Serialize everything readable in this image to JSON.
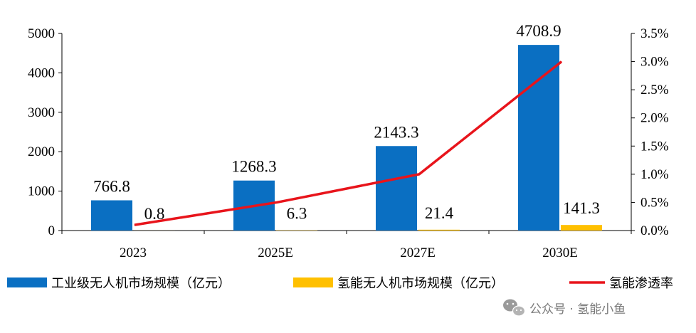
{
  "chart_data": {
    "type": "bar",
    "categories": [
      "2023",
      "2025E",
      "2027E",
      "2030E"
    ],
    "series": [
      {
        "name": "工业级无人机市场规模（亿元）",
        "type": "bar",
        "axis": "left",
        "color": "#0a6fc2",
        "values": [
          766.8,
          1268.3,
          2143.3,
          4708.9
        ],
        "labels": [
          "766.8",
          "1268.3",
          "2143.3",
          "4708.9"
        ]
      },
      {
        "name": "氢能无人机市场规模（亿元）",
        "type": "bar",
        "axis": "left",
        "color": "#ffc000",
        "values": [
          0.8,
          6.3,
          21.4,
          141.3
        ],
        "labels": [
          "0.8",
          "6.3",
          "21.4",
          "141.3"
        ]
      },
      {
        "name": "氢能渗透率",
        "type": "line",
        "axis": "right",
        "color": "#e8141b",
        "values": [
          0.1,
          0.5,
          1.0,
          3.0
        ]
      }
    ],
    "y_left": {
      "min": 0,
      "max": 5000,
      "ticks": [
        "0",
        "1000",
        "2000",
        "3000",
        "4000",
        "5000"
      ]
    },
    "y_right": {
      "min": 0,
      "max": 3.5,
      "ticks": [
        "0.0%",
        "0.5%",
        "1.0%",
        "1.5%",
        "2.0%",
        "2.5%",
        "3.0%",
        "3.5%"
      ]
    },
    "grid": false,
    "legend_position": "bottom",
    "title": "",
    "xlabel": "",
    "ylabel": ""
  },
  "watermark": {
    "text": "公众号 · 氢能小鱼",
    "icon": "wechat-icon"
  }
}
